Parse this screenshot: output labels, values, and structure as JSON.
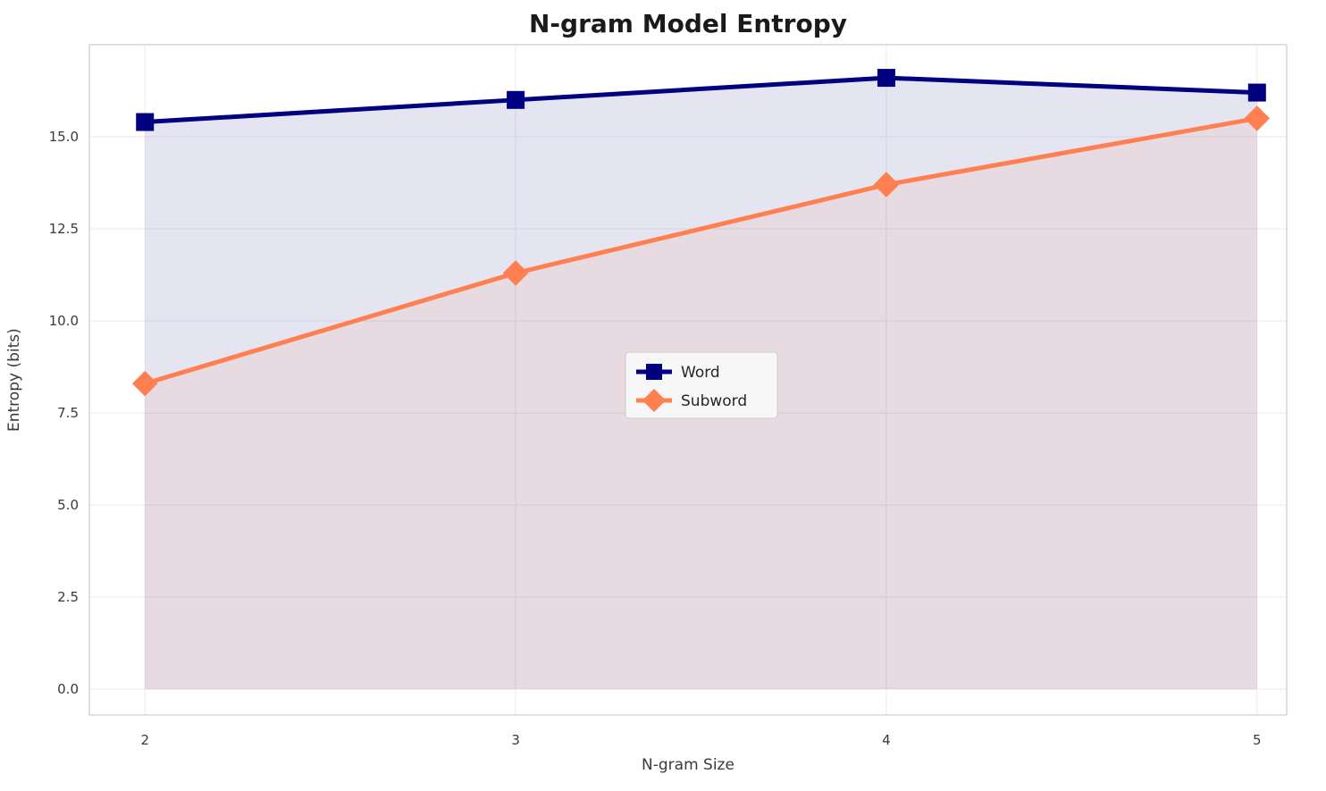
{
  "chart_data": {
    "type": "line",
    "title": "N-gram Model Entropy",
    "xlabel": "N-gram Size",
    "ylabel": "Entropy (bits)",
    "x": [
      2,
      3,
      4,
      5
    ],
    "series": [
      {
        "name": "Word",
        "values": [
          15.4,
          16.0,
          16.6,
          16.2
        ],
        "color": "#000080",
        "marker": "square",
        "fill_alpha": 0.1
      },
      {
        "name": "Subword",
        "values": [
          8.3,
          11.3,
          13.7,
          15.5
        ],
        "color": "#FF7F50",
        "marker": "diamond",
        "fill_alpha": 0.1
      }
    ],
    "xlim": [
      1.85,
      5.08
    ],
    "ylim": [
      -0.7,
      17.5
    ],
    "xticks": [
      2,
      3,
      4,
      5
    ],
    "xtick_labels": [
      "2",
      "3",
      "4",
      "5"
    ],
    "yticks": [
      0.0,
      2.5,
      5.0,
      7.5,
      10.0,
      12.5,
      15.0
    ],
    "ytick_labels": [
      "0.0",
      "2.5",
      "5.0",
      "7.5",
      "10.0",
      "12.5",
      "15.0"
    ],
    "grid": true,
    "fill_to_zero": true,
    "legend": {
      "position": "center",
      "entries": [
        "Word",
        "Subword"
      ]
    },
    "colors": {
      "grid": "#eaeaef",
      "spine": "#d0d0d0",
      "tick_text": "#3a3a3a",
      "legend_bg": "#f7f7f7",
      "legend_border": "#cccccc"
    }
  }
}
